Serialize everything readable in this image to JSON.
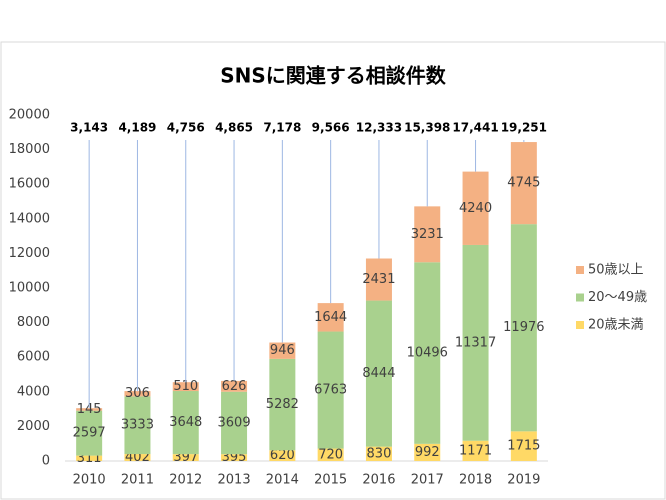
{
  "chart_data": {
    "type": "stacked-bar",
    "title": "SNSに関連する相談件数",
    "categories": [
      "2010",
      "2011",
      "2012",
      "2013",
      "2014",
      "2015",
      "2016",
      "2017",
      "2018",
      "2019"
    ],
    "series": [
      {
        "name": "20歳未満",
        "color": "#ffd966",
        "values": [
          311,
          402,
          397,
          395,
          620,
          720,
          830,
          992,
          1171,
          1715
        ]
      },
      {
        "name": "20〜49歳",
        "color": "#a9d18e",
        "values": [
          2597,
          3333,
          3648,
          3609,
          5282,
          6763,
          8444,
          10496,
          11317,
          11976
        ]
      },
      {
        "name": "50歳以上",
        "color": "#f4b183",
        "values": [
          145,
          306,
          510,
          626,
          946,
          1644,
          2431,
          3231,
          4240,
          4745
        ]
      }
    ],
    "totals": {
      "values": [
        3143,
        4189,
        4756,
        4865,
        7178,
        9566,
        12333,
        15398,
        17441,
        19251
      ],
      "value_labels": [
        "3,143",
        "4,189",
        "4,756",
        "4,865",
        "7,178",
        "9,566",
        "12,333",
        "15,398",
        "17,441",
        "19,251"
      ]
    },
    "ylim": [
      0,
      20000
    ],
    "yticks": [
      0,
      2000,
      4000,
      6000,
      8000,
      10000,
      12000,
      14000,
      16000,
      18000,
      20000
    ],
    "legend": "right"
  }
}
